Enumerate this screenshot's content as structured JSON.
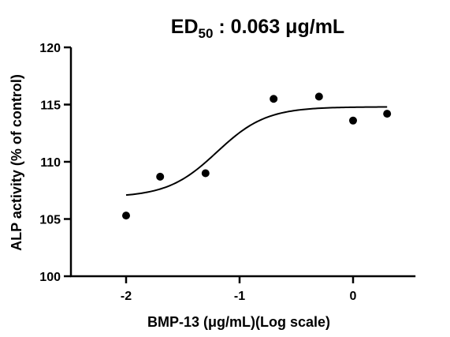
{
  "chart_data": {
    "type": "scatter",
    "title_main": "ED",
    "title_sub": "50",
    "title_rest": " : 0.063 μg/mL",
    "xlabel": "BMP-13 (μg/mL)(Log scale)",
    "ylabel": "ALP activity (% of control)",
    "xlim": [
      -2.5,
      0.55
    ],
    "ylim": [
      100,
      120
    ],
    "x_ticks": [
      -2,
      -1,
      0
    ],
    "x_tick_labels": [
      "-2",
      "-1",
      "0"
    ],
    "y_ticks": [
      100,
      105,
      110,
      115,
      120
    ],
    "y_tick_labels": [
      "100",
      "105",
      "110",
      "115",
      "120"
    ],
    "grid": false,
    "series": [
      {
        "points": [
          {
            "x": -2.0,
            "y": 105.3
          },
          {
            "x": -1.7,
            "y": 108.7
          },
          {
            "x": -1.3,
            "y": 109.0
          },
          {
            "x": -0.7,
            "y": 115.5
          },
          {
            "x": -0.3,
            "y": 115.7
          },
          {
            "x": 0.0,
            "y": 113.6
          },
          {
            "x": 0.3,
            "y": 114.2
          }
        ]
      }
    ],
    "fit_curve": {
      "type": "sigmoidal_dose_response",
      "bottom": 106.9,
      "top": 114.8,
      "log_ec50": -1.2,
      "hill_slope": 2.0,
      "x_range": [
        -2.0,
        0.3
      ]
    },
    "colors": {
      "marker": "#000000",
      "line": "#000000",
      "axis": "#000000"
    }
  }
}
